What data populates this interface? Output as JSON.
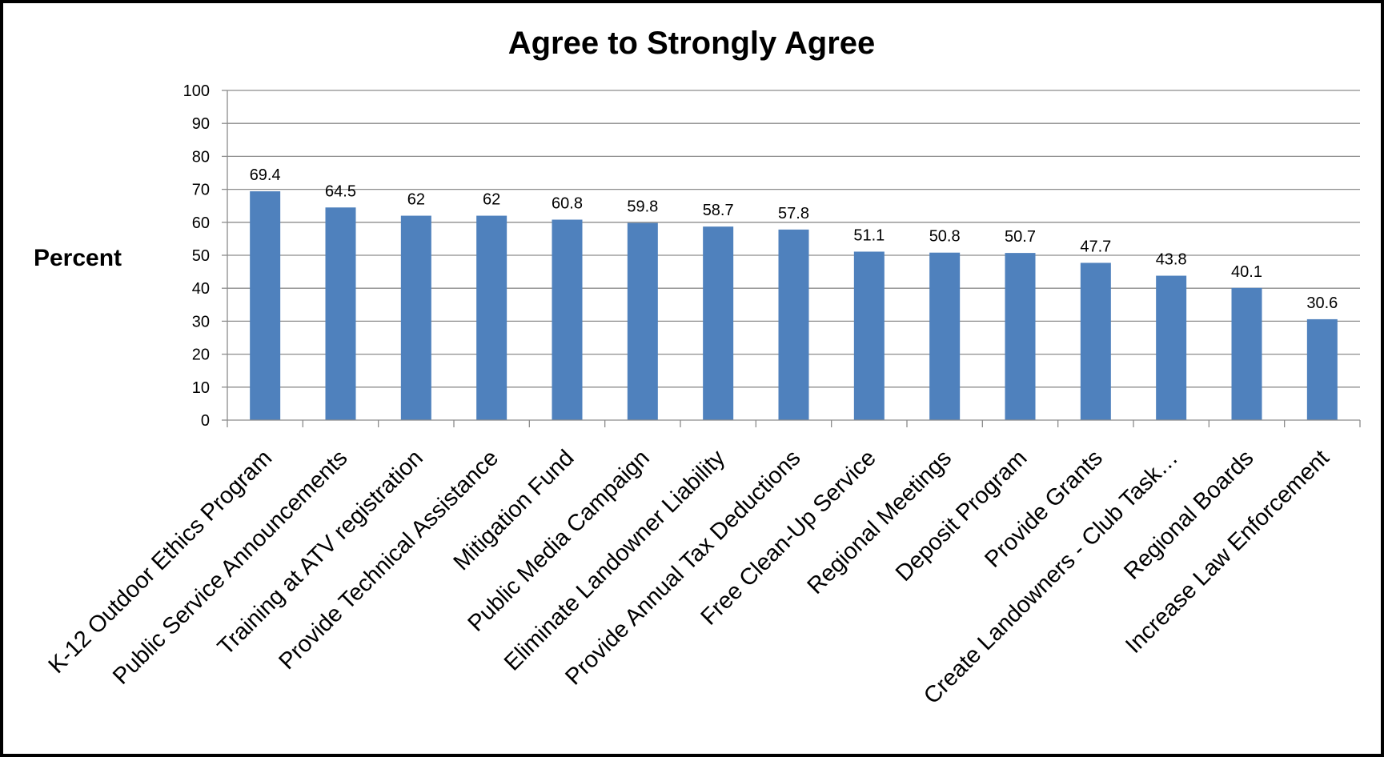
{
  "chart_data": {
    "type": "bar",
    "title": "Agree to Strongly Agree",
    "ylabel": "Percent",
    "xlabel": "",
    "ylim": [
      0,
      100
    ],
    "yticks": [
      0,
      10,
      20,
      30,
      40,
      50,
      60,
      70,
      80,
      90,
      100
    ],
    "grid": true,
    "bar_color": "#4F81BD",
    "categories": [
      "K-12 Outdoor Ethics Program",
      "Public Service Announcements",
      "Training at ATV registration",
      "Provide Technical Assistance",
      "Mitigation Fund",
      "Public Media Campaign",
      "Eliminate Landowner Liability",
      "Provide Annual Tax Deductions",
      "Free Clean-Up Service",
      "Regional Meetings",
      "Deposit Program",
      "Provide Grants",
      "Create Landowners - Club Task…",
      "Regional Boards",
      "Increase Law Enforcement"
    ],
    "values": [
      69.4,
      64.5,
      62,
      62,
      60.8,
      59.8,
      58.7,
      57.8,
      51.1,
      50.8,
      50.7,
      47.7,
      43.8,
      40.1,
      30.6
    ]
  }
}
